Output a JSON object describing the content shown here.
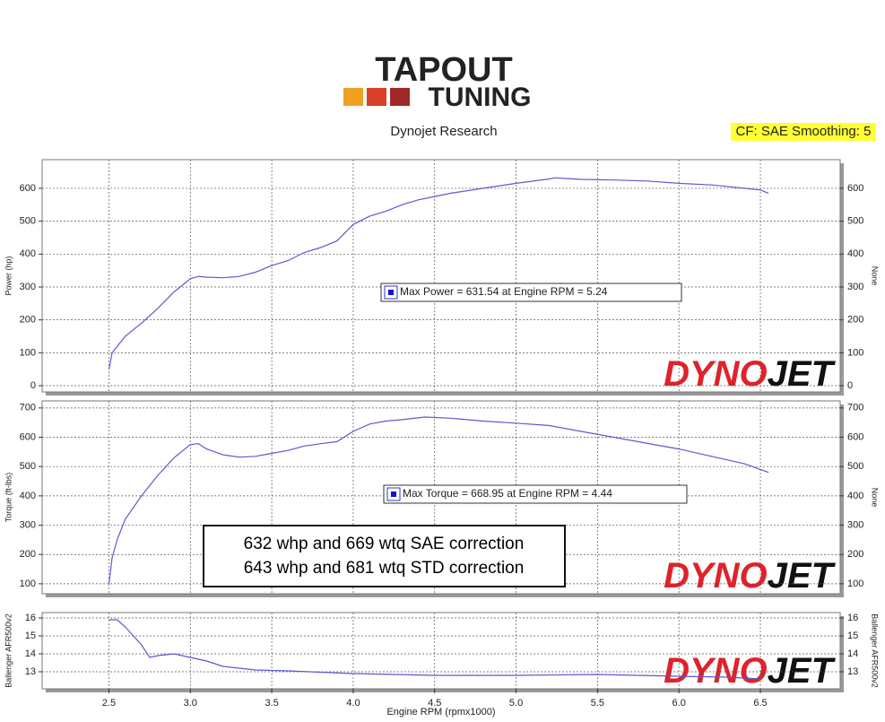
{
  "header": {
    "logo_top": "TAPOUT",
    "logo_bottom": "TUNING",
    "subtitle": "Dynojet Research",
    "badge": "CF: SAE Smoothing: 5"
  },
  "watermark": {
    "part1": "DYNO",
    "part2": "JET"
  },
  "note": [
    "632 whp and 669 wtq SAE correction",
    "643 whp and 681 wtq STD correction"
  ],
  "chart_data": [
    {
      "type": "line",
      "ylabel": "Power (hp)",
      "y2label": "None",
      "color": "#5a5ad0",
      "grid": true,
      "annotation": "Max Power = 631.54 at Engine RPM = 5.24",
      "xlim": [
        2.09,
        6.99
      ],
      "ylim": [
        -19,
        687
      ],
      "yticks": [
        0,
        100,
        200,
        300,
        400,
        500,
        600
      ],
      "x": [
        2.5,
        2.52,
        2.6,
        2.7,
        2.8,
        2.9,
        3.0,
        3.05,
        3.1,
        3.2,
        3.3,
        3.4,
        3.5,
        3.6,
        3.7,
        3.8,
        3.9,
        4.0,
        4.1,
        4.2,
        4.3,
        4.4,
        4.5,
        4.6,
        4.8,
        5.0,
        5.2,
        5.24,
        5.4,
        5.6,
        5.8,
        6.0,
        6.2,
        6.4,
        6.5,
        6.55
      ],
      "values": [
        50,
        100,
        150,
        190,
        235,
        285,
        325,
        332,
        330,
        328,
        332,
        345,
        365,
        380,
        405,
        420,
        440,
        490,
        515,
        530,
        550,
        565,
        575,
        585,
        600,
        615,
        628,
        631.54,
        627,
        625,
        622,
        615,
        610,
        600,
        595,
        585
      ]
    },
    {
      "type": "line",
      "ylabel": "Torque (ft-lbs)",
      "y2label": "None",
      "color": "#5a5ad0",
      "grid": true,
      "annotation": "Max Torque = 668.95 at Engine RPM = 4.44",
      "xlim": [
        2.09,
        6.99
      ],
      "ylim": [
        66,
        724
      ],
      "yticks": [
        100,
        200,
        300,
        400,
        500,
        600,
        700
      ],
      "x": [
        2.5,
        2.52,
        2.55,
        2.6,
        2.7,
        2.8,
        2.9,
        3.0,
        3.05,
        3.1,
        3.2,
        3.3,
        3.4,
        3.5,
        3.6,
        3.7,
        3.8,
        3.9,
        4.0,
        4.1,
        4.2,
        4.3,
        4.44,
        4.6,
        4.8,
        5.0,
        5.2,
        5.4,
        5.6,
        5.8,
        6.0,
        6.2,
        6.4,
        6.55
      ],
      "values": [
        100,
        190,
        250,
        320,
        400,
        470,
        530,
        575,
        578,
        560,
        540,
        532,
        535,
        545,
        555,
        570,
        578,
        585,
        620,
        645,
        655,
        660,
        668.95,
        665,
        655,
        648,
        640,
        620,
        600,
        580,
        560,
        535,
        510,
        480
      ]
    },
    {
      "type": "line",
      "ylabel": "Ballenger AFR500v2",
      "y2label": "Ballenger AFR500v2",
      "color": "#5a5ad0",
      "grid": true,
      "xlabel": "Engine RPM (rpmx1000)",
      "xlim": [
        2.09,
        6.99
      ],
      "ylim": [
        12.05,
        16.3
      ],
      "yticks": [
        13,
        14,
        15,
        16
      ],
      "xticks": [
        2.5,
        {
          "value": 3,
          "label": "3.0"
        },
        3.5,
        {
          "value": 4,
          "label": "4.0"
        },
        4.5,
        {
          "value": 5,
          "label": "5.0"
        },
        5.5,
        {
          "value": 6,
          "label": "6.0"
        },
        6.5
      ],
      "x": [
        2.5,
        2.55,
        2.6,
        2.7,
        2.75,
        2.8,
        2.9,
        3.0,
        3.1,
        3.2,
        3.4,
        3.6,
        4.0,
        4.5,
        5.0,
        5.5,
        6.0,
        6.3,
        6.5
      ],
      "values": [
        15.9,
        15.9,
        15.5,
        14.5,
        13.8,
        13.9,
        14.0,
        13.8,
        13.6,
        13.3,
        13.1,
        13.05,
        12.9,
        12.8,
        12.8,
        12.85,
        12.75,
        12.7,
        12.6
      ]
    }
  ]
}
